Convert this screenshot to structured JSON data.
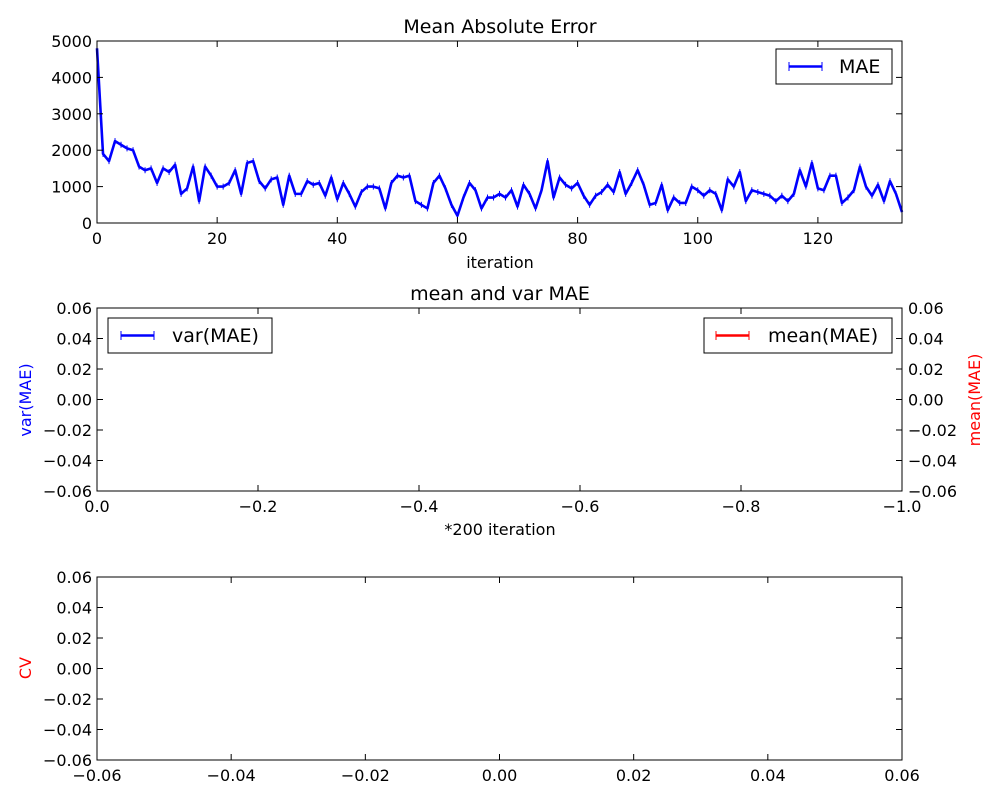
{
  "chart_data": [
    {
      "type": "line",
      "title": "Mean Absolute Error",
      "xlabel": "iteration",
      "ylabel": "",
      "xlim": [
        0,
        134
      ],
      "ylim": [
        0,
        5000
      ],
      "x_ticks": [
        "0",
        "20",
        "40",
        "60",
        "80",
        "100",
        "120"
      ],
      "y_ticks": [
        "0",
        "1000",
        "2000",
        "3000",
        "4000",
        "5000"
      ],
      "grid": false,
      "legend": {
        "position": "top-right",
        "entries": [
          "MAE"
        ]
      },
      "series": [
        {
          "name": "MAE",
          "color": "#0000ff",
          "values": [
            4800,
            1900,
            1700,
            2250,
            2150,
            2050,
            2000,
            1550,
            1450,
            1500,
            1100,
            1500,
            1400,
            1600,
            800,
            950,
            1550,
            600,
            1550,
            1300,
            1000,
            1000,
            1100,
            1450,
            800,
            1650,
            1700,
            1150,
            950,
            1200,
            1250,
            500,
            1300,
            800,
            800,
            1150,
            1050,
            1100,
            750,
            1250,
            650,
            1100,
            800,
            450,
            850,
            1000,
            1000,
            950,
            400,
            1100,
            1300,
            1250,
            1300,
            600,
            500,
            400,
            1100,
            1300,
            950,
            500,
            200,
            700,
            1100,
            900,
            400,
            700,
            700,
            800,
            700,
            900,
            450,
            1050,
            800,
            400,
            900,
            1700,
            700,
            1250,
            1050,
            950,
            1100,
            750,
            500,
            750,
            850,
            1050,
            850,
            1400,
            800,
            1100,
            1450,
            1050,
            500,
            550,
            1050,
            350,
            700,
            550,
            550,
            1000,
            900,
            750,
            900,
            800,
            350,
            1200,
            1000,
            1400,
            600,
            900,
            850,
            800,
            750,
            600,
            750,
            600,
            800,
            1450,
            1000,
            1650,
            950,
            900,
            1300,
            1300,
            550,
            700,
            900,
            1550,
            1000,
            750,
            1050,
            600,
            1150,
            800,
            300
          ]
        }
      ]
    },
    {
      "type": "line",
      "title": "mean and var MAE",
      "xlabel": "*200 iteration",
      "ylabel": "var(MAE)",
      "ylabel_right": "mean(MAE)",
      "ylabel_color": "#0000ff",
      "ylabel_right_color": "#ff0000",
      "xlim": [
        0.0,
        -1.0
      ],
      "ylim": [
        -0.06,
        0.06
      ],
      "x_ticks": [
        "0.0",
        "−0.2",
        "−0.4",
        "−0.6",
        "−0.8",
        "−1.0"
      ],
      "y_ticks": [
        "0.06",
        "0.04",
        "0.02",
        "0.00",
        "−0.02",
        "−0.04",
        "−0.06"
      ],
      "y_ticks_right": [
        "0.06",
        "0.04",
        "0.02",
        "0.00",
        "−0.02",
        "−0.04",
        "−0.06"
      ],
      "grid": false,
      "legend_left": {
        "position": "top-left",
        "entries": [
          "var(MAE)"
        ],
        "color": "#0000ff"
      },
      "legend_right": {
        "position": "top-right",
        "entries": [
          "mean(MAE)"
        ],
        "color": "#ff0000"
      },
      "series": []
    },
    {
      "type": "line",
      "title": "",
      "xlabel": "",
      "ylabel": "CV",
      "ylabel_color": "#ff0000",
      "xlim": [
        -0.06,
        0.06
      ],
      "ylim": [
        -0.06,
        0.06
      ],
      "x_ticks": [
        "−0.06",
        "−0.04",
        "−0.02",
        "0.00",
        "0.02",
        "0.04",
        "0.06"
      ],
      "y_ticks": [
        "0.06",
        "0.04",
        "0.02",
        "0.00",
        "−0.02",
        "−0.04",
        "−0.06"
      ],
      "grid": false,
      "series": []
    }
  ]
}
